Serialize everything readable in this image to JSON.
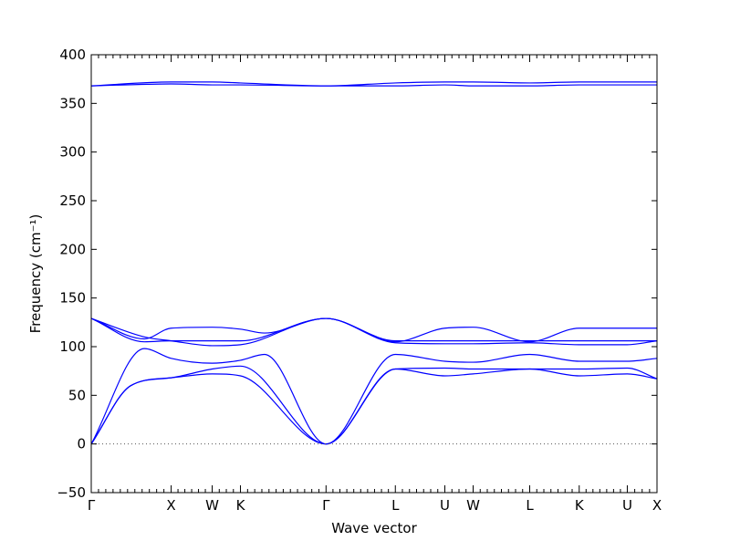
{
  "chart_data": {
    "type": "line",
    "title": "",
    "xlabel": "Wave vector",
    "ylabel": "Frequency (cm⁻¹)",
    "ylim": [
      -50,
      400
    ],
    "yticks": [
      -50,
      0,
      50,
      100,
      150,
      200,
      250,
      300,
      350,
      400
    ],
    "xlim": [
      0,
      800
    ],
    "grid": false,
    "legend": "none",
    "line_color": "#0000ff",
    "high_symmetry_points": [
      {
        "label": "Γ",
        "pos": 0
      },
      {
        "label": "X",
        "pos": 113
      },
      {
        "label": "W",
        "pos": 171
      },
      {
        "label": "K",
        "pos": 211
      },
      {
        "label": "Γ",
        "pos": 332
      },
      {
        "label": "L",
        "pos": 430
      },
      {
        "label": "U",
        "pos": 500
      },
      {
        "label": "W",
        "pos": 540
      },
      {
        "label": "L",
        "pos": 620
      },
      {
        "label": "K",
        "pos": 690
      },
      {
        "label": "U",
        "pos": 758
      },
      {
        "label": "X",
        "pos": 800
      }
    ],
    "series": [
      {
        "x": [
          0,
          56,
          113,
          171,
          211,
          332,
          430,
          500,
          540,
          620,
          690,
          758,
          800
        ],
        "y": [
          0,
          60,
          68,
          72,
          70,
          0,
          77,
          70,
          72,
          77,
          70,
          72,
          67
        ]
      },
      {
        "x": [
          0,
          56,
          113,
          171,
          211,
          332,
          430,
          500,
          540,
          620,
          690,
          758,
          800
        ],
        "y": [
          0,
          60,
          68,
          77,
          80,
          0,
          77,
          78,
          77,
          77,
          77,
          78,
          67
        ]
      },
      {
        "x": [
          0,
          75,
          113,
          171,
          211,
          245,
          332,
          430,
          500,
          540,
          620,
          690,
          758,
          800
        ],
        "y": [
          0,
          98,
          88,
          83,
          86,
          92,
          0,
          92,
          85,
          84,
          92,
          85,
          85,
          88
        ]
      },
      {
        "x": [
          0,
          75,
          113,
          171,
          211,
          332,
          430,
          500,
          540,
          620,
          690,
          758,
          800
        ],
        "y": [
          129,
          105,
          106,
          106,
          106,
          129,
          106,
          106,
          106,
          106,
          106,
          106,
          106
        ]
      },
      {
        "x": [
          0,
          75,
          113,
          171,
          211,
          332,
          430,
          500,
          540,
          620,
          690,
          758,
          800
        ],
        "y": [
          129,
          110,
          106,
          101,
          102,
          129,
          104,
          103,
          103,
          104,
          102,
          102,
          106
        ]
      },
      {
        "x": [
          0,
          75,
          113,
          171,
          211,
          245,
          332,
          430,
          500,
          540,
          620,
          690,
          758,
          800
        ],
        "y": [
          129,
          108,
          119,
          120,
          118,
          114,
          129,
          105,
          119,
          120,
          105,
          119,
          119,
          119
        ]
      },
      {
        "x": [
          0,
          113,
          171,
          211,
          332,
          430,
          500,
          540,
          620,
          690,
          758,
          800
        ],
        "y": [
          368,
          370,
          369,
          369,
          368,
          368,
          369,
          368,
          368,
          369,
          369,
          369
        ]
      },
      {
        "x": [
          0,
          113,
          171,
          211,
          332,
          430,
          500,
          540,
          620,
          690,
          758,
          800
        ],
        "y": [
          368,
          372,
          372,
          371,
          368,
          371,
          372,
          372,
          371,
          372,
          372,
          372
        ]
      }
    ]
  }
}
